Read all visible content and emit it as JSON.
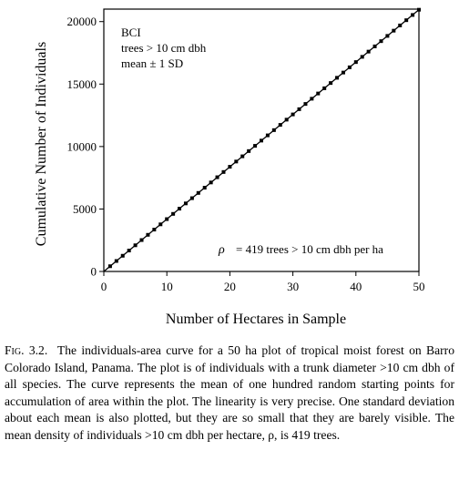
{
  "chart_data": {
    "type": "line",
    "xlabel": "Number of Hectares in Sample",
    "ylabel": "Cumulative Number of Individuals",
    "xlim": [
      0,
      50
    ],
    "ylim": [
      0,
      21000
    ],
    "xticks": [
      0,
      10,
      20,
      30,
      40,
      50
    ],
    "yticks": [
      0,
      5000,
      10000,
      15000,
      20000
    ],
    "inset_text": [
      "BCI",
      "trees > 10 cm dbh",
      "mean ± 1 SD"
    ],
    "density_annotation": {
      "symbol": "ρ",
      "text": "= 419 trees > 10 cm dbh per ha"
    },
    "series": [
      {
        "x": [
          1,
          2,
          3,
          4,
          5,
          6,
          7,
          8,
          9,
          10,
          11,
          12,
          13,
          14,
          15,
          16,
          17,
          18,
          19,
          20,
          21,
          22,
          23,
          24,
          25,
          26,
          27,
          28,
          29,
          30,
          31,
          32,
          33,
          34,
          35,
          36,
          37,
          38,
          39,
          40,
          41,
          42,
          43,
          44,
          45,
          46,
          47,
          48,
          49,
          50
        ],
        "y": [
          419,
          838,
          1257,
          1676,
          2095,
          2514,
          2933,
          3352,
          3771,
          4190,
          4609,
          5028,
          5447,
          5866,
          6285,
          6704,
          7123,
          7542,
          7961,
          8380,
          8799,
          9218,
          9637,
          10056,
          10475,
          10894,
          11313,
          11732,
          12151,
          12570,
          12989,
          13408,
          13827,
          14246,
          14665,
          15084,
          15503,
          15922,
          16341,
          16760,
          17179,
          17598,
          18017,
          18436,
          18855,
          19274,
          19693,
          20112,
          20531,
          20950
        ]
      }
    ]
  },
  "caption": {
    "label": "Fig. 3.2.",
    "text": "The individuals-area curve for a 50 ha plot of tropical moist forest on Barro Colorado Island, Panama. The plot is of individuals with a trunk diameter >10 cm dbh of all species. The curve represents the mean of one hundred random starting points for accumulation of area within the plot. The linearity is very precise. One standard deviation about each mean is also plotted, but they are so small that they are barely visible. The mean density of individuals >10 cm dbh per hectare, ρ, is 419 trees."
  }
}
